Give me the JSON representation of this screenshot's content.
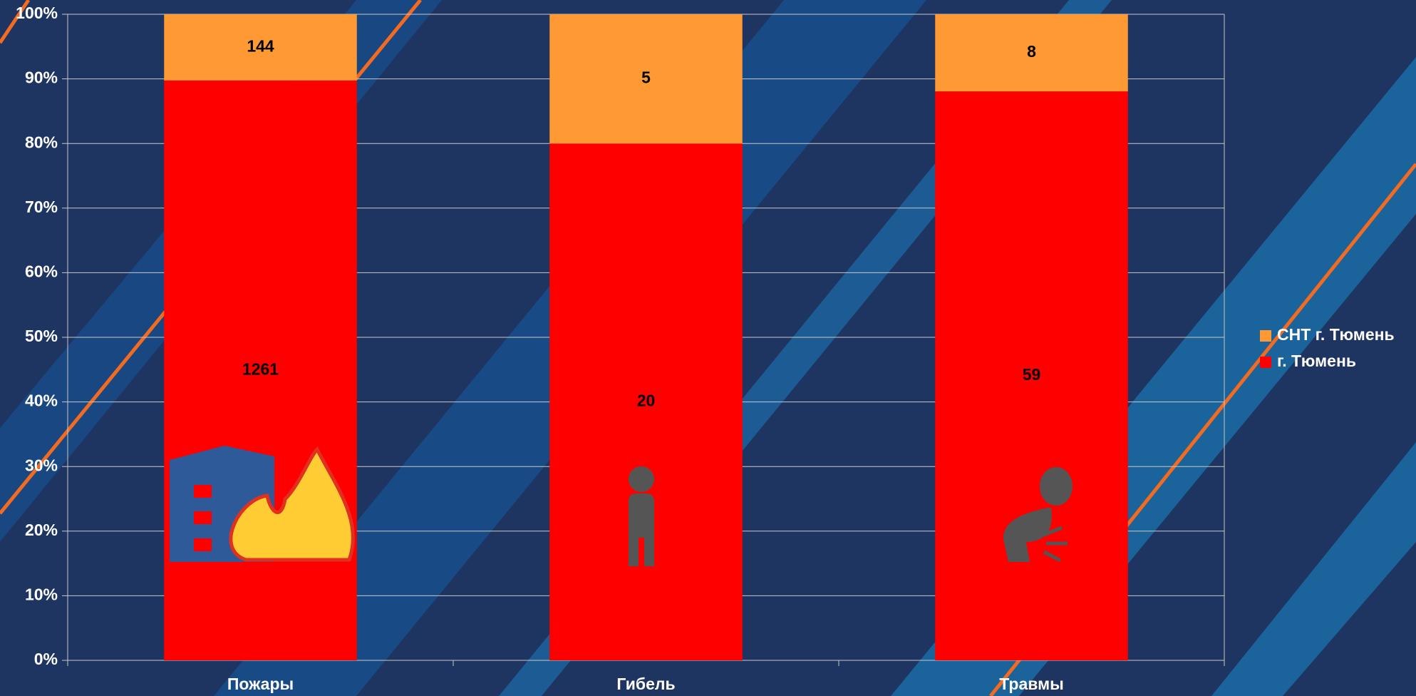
{
  "chart_data": {
    "type": "bar",
    "stacked": "percent",
    "categories": [
      "Пожары",
      "Гибель",
      "Травмы"
    ],
    "series": [
      {
        "name": "г. Тюмень",
        "color": "#ff0000",
        "values": [
          1261,
          20,
          59
        ]
      },
      {
        "name": "СНТ г. Тюмень",
        "color": "#ff9933",
        "values": [
          144,
          5,
          8
        ]
      }
    ],
    "ylim": [
      0,
      100
    ],
    "yticks": [
      {
        "value": 0,
        "label": "0%"
      },
      {
        "value": 10,
        "label": "10%"
      },
      {
        "value": 20,
        "label": "20%"
      },
      {
        "value": 30,
        "label": "30%"
      },
      {
        "value": 40,
        "label": "40%"
      },
      {
        "value": 50,
        "label": "50%"
      },
      {
        "value": 60,
        "label": "60%"
      },
      {
        "value": 70,
        "label": "70%"
      },
      {
        "value": 80,
        "label": "80%"
      },
      {
        "value": 90,
        "label": "90%"
      },
      {
        "value": 100,
        "label": "100%"
      }
    ],
    "grid": true,
    "legend": "right"
  }
}
